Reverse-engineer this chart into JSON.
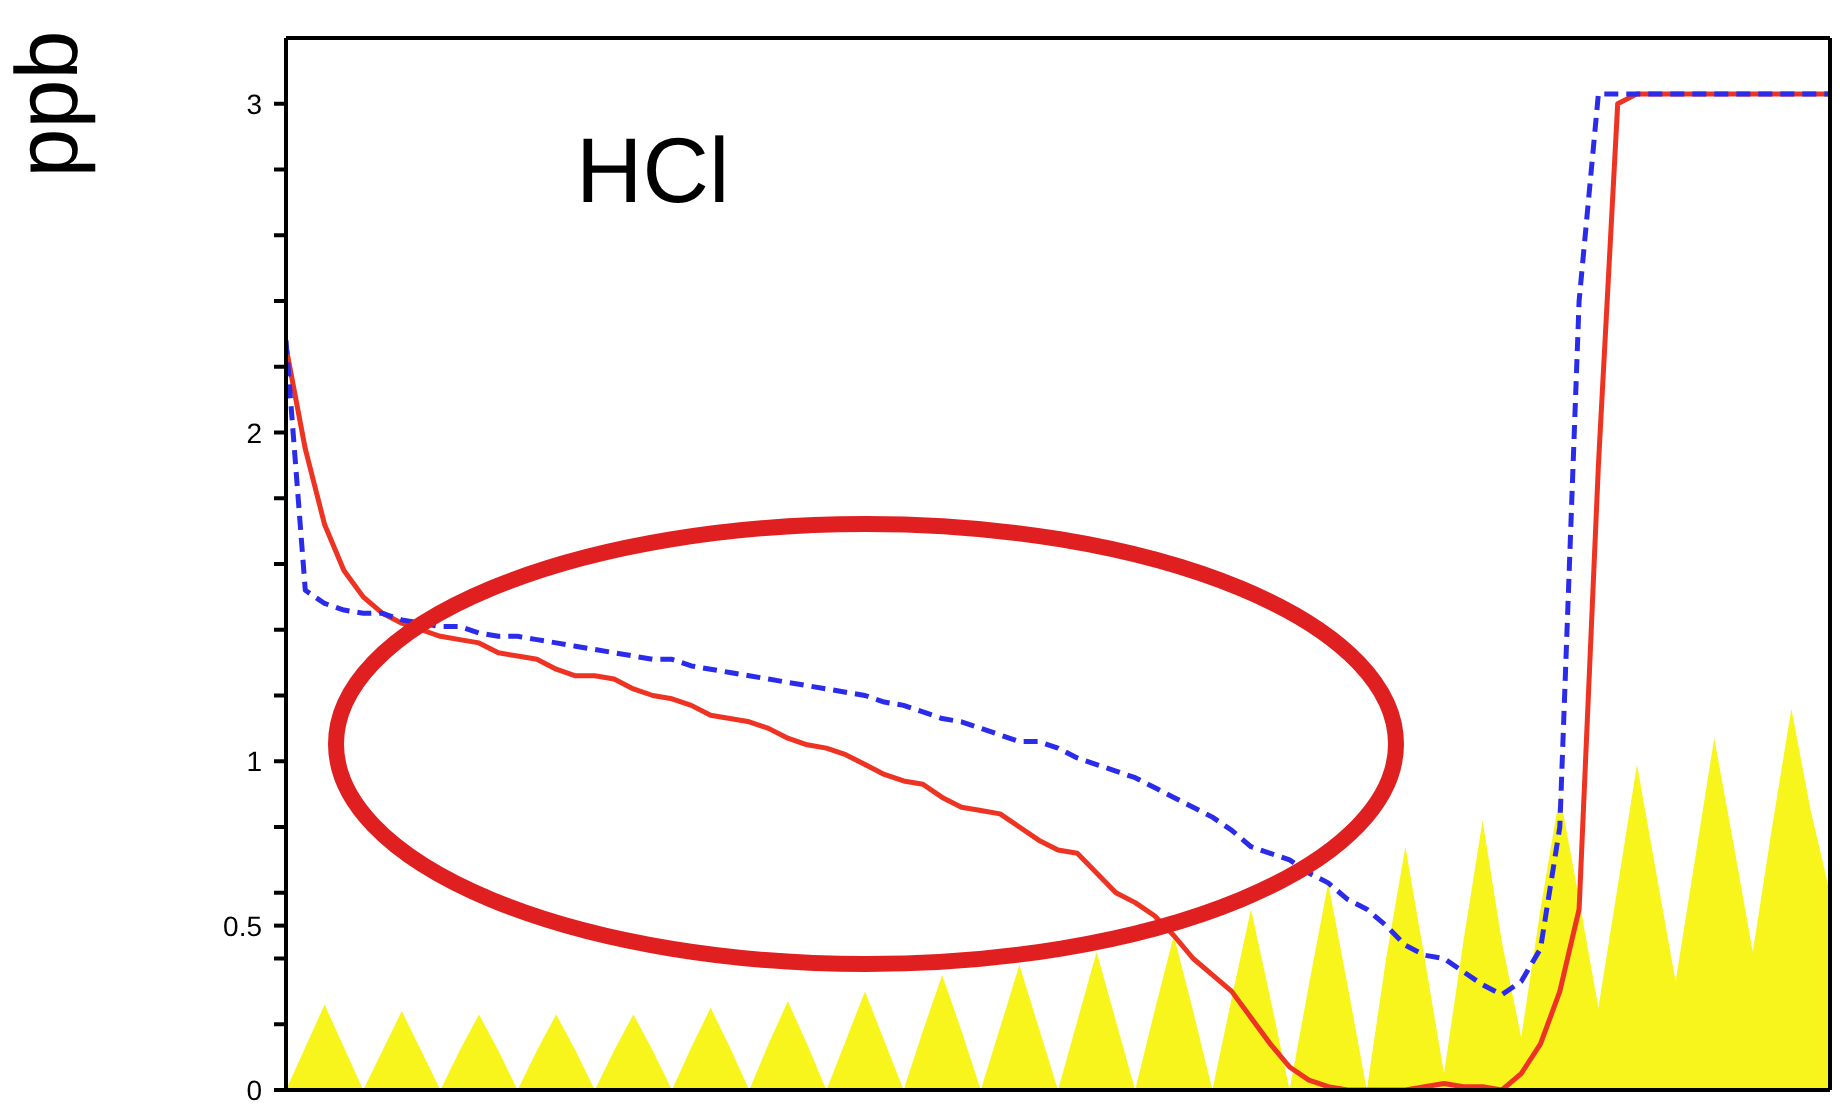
{
  "chart_data": {
    "type": "line",
    "title": "HCl",
    "ylabel": "ppb",
    "categories": [
      null,
      null,
      null,
      null,
      null,
      null,
      null,
      null,
      null,
      null,
      null,
      null,
      null,
      null,
      null,
      null,
      null,
      null,
      null,
      null,
      null,
      null,
      null,
      null,
      null,
      null,
      null,
      null,
      null,
      null,
      null,
      null,
      null,
      null,
      null,
      null,
      null,
      null,
      null,
      null,
      null,
      null,
      null,
      null,
      null,
      null,
      null,
      null,
      null,
      null,
      null,
      null,
      null,
      null,
      null,
      null,
      null,
      null,
      null,
      null,
      null,
      null,
      null,
      null,
      null,
      null,
      null,
      null,
      null,
      null,
      null,
      null,
      null,
      null,
      null,
      null,
      null,
      null,
      null,
      null,
      null
    ],
    "series": [
      {
        "type": "area",
        "color": "#f8f51c",
        "values": [
          0,
          0.13,
          0.26,
          0.13,
          0,
          0.12,
          0.24,
          0.12,
          0,
          0.12,
          0.23,
          0.12,
          0,
          0.12,
          0.23,
          0.12,
          0,
          0.12,
          0.23,
          0.12,
          0,
          0.13,
          0.25,
          0.13,
          0,
          0.14,
          0.27,
          0.14,
          0,
          0.15,
          0.3,
          0.15,
          0,
          0.18,
          0.35,
          0.18,
          0,
          0.19,
          0.38,
          0.19,
          0,
          0.21,
          0.42,
          0.21,
          0,
          0.24,
          0.47,
          0.24,
          0,
          0.28,
          0.55,
          0.28,
          0,
          0.32,
          0.63,
          0.32,
          0,
          0.4,
          0.74,
          0.4,
          0.05,
          0.45,
          0.82,
          0.45,
          0.16,
          0.55,
          0.9,
          0.58,
          0.25,
          0.62,
          0.99,
          0.66,
          0.33,
          0.7,
          1.07,
          0.75,
          0.42,
          0.8,
          1.16,
          0.85,
          0.6
        ]
      },
      {
        "color": "#ee3322",
        "line_style": "solid",
        "values": [
          2.26,
          1.95,
          1.72,
          1.58,
          1.5,
          1.45,
          1.42,
          1.4,
          1.38,
          1.37,
          1.36,
          1.33,
          1.32,
          1.31,
          1.28,
          1.26,
          1.26,
          1.25,
          1.22,
          1.2,
          1.19,
          1.17,
          1.14,
          1.13,
          1.12,
          1.1,
          1.07,
          1.05,
          1.04,
          1.02,
          0.99,
          0.96,
          0.94,
          0.93,
          0.89,
          0.86,
          0.85,
          0.84,
          0.8,
          0.76,
          0.73,
          0.72,
          0.66,
          0.6,
          0.57,
          0.53,
          0.47,
          0.4,
          0.35,
          0.3,
          0.22,
          0.14,
          0.07,
          0.03,
          0.01,
          0,
          0,
          0,
          0,
          0.01,
          0.02,
          0.01,
          0.01,
          0,
          0.05,
          0.14,
          0.3,
          0.55,
          1.9,
          3,
          3.03,
          3.03,
          3.03,
          3.03,
          3.03,
          3.03,
          3.03,
          3.03,
          3.03,
          3.03,
          3.03
        ]
      },
      {
        "color": "#2b2bec",
        "line_style": "dashed",
        "values": [
          2.28,
          1.52,
          1.48,
          1.46,
          1.45,
          1.45,
          1.43,
          1.42,
          1.41,
          1.41,
          1.39,
          1.38,
          1.38,
          1.37,
          1.36,
          1.35,
          1.34,
          1.33,
          1.32,
          1.31,
          1.31,
          1.29,
          1.28,
          1.27,
          1.26,
          1.25,
          1.24,
          1.23,
          1.22,
          1.21,
          1.2,
          1.18,
          1.17,
          1.15,
          1.13,
          1.12,
          1.1,
          1.08,
          1.06,
          1.06,
          1.04,
          1.01,
          0.99,
          0.97,
          0.95,
          0.92,
          0.89,
          0.86,
          0.83,
          0.79,
          0.74,
          0.72,
          0.7,
          0.66,
          0.63,
          0.58,
          0.55,
          0.5,
          0.44,
          0.41,
          0.4,
          0.36,
          0.32,
          0.29,
          0.33,
          0.43,
          0.8,
          2.4,
          3.03,
          3.03,
          3.03,
          3.03,
          3.03,
          3.03,
          3.03,
          3.03,
          3.03,
          3.03,
          3.03,
          3.03,
          3.03
        ]
      }
    ],
    "ylim": [
      0,
      3.2
    ],
    "yticks": [
      0,
      {
        "value": 0.2,
        "label": null
      },
      {
        "value": 0.4,
        "label": null
      },
      {
        "value": 0.5,
        "label": "0.5"
      },
      {
        "value": 0.6,
        "label": null
      },
      {
        "value": 0.8,
        "label": null
      },
      1,
      {
        "value": 1.2,
        "label": null
      },
      {
        "value": 1.4,
        "label": null
      },
      {
        "value": 1.6,
        "label": null
      },
      {
        "value": 1.8,
        "label": null
      },
      2,
      {
        "value": 2.2,
        "label": null
      },
      {
        "value": 2.4,
        "label": null
      },
      {
        "value": 2.6,
        "label": null
      },
      {
        "value": 2.8,
        "label": null
      },
      3
    ],
    "tick_labels": "y"
  }
}
